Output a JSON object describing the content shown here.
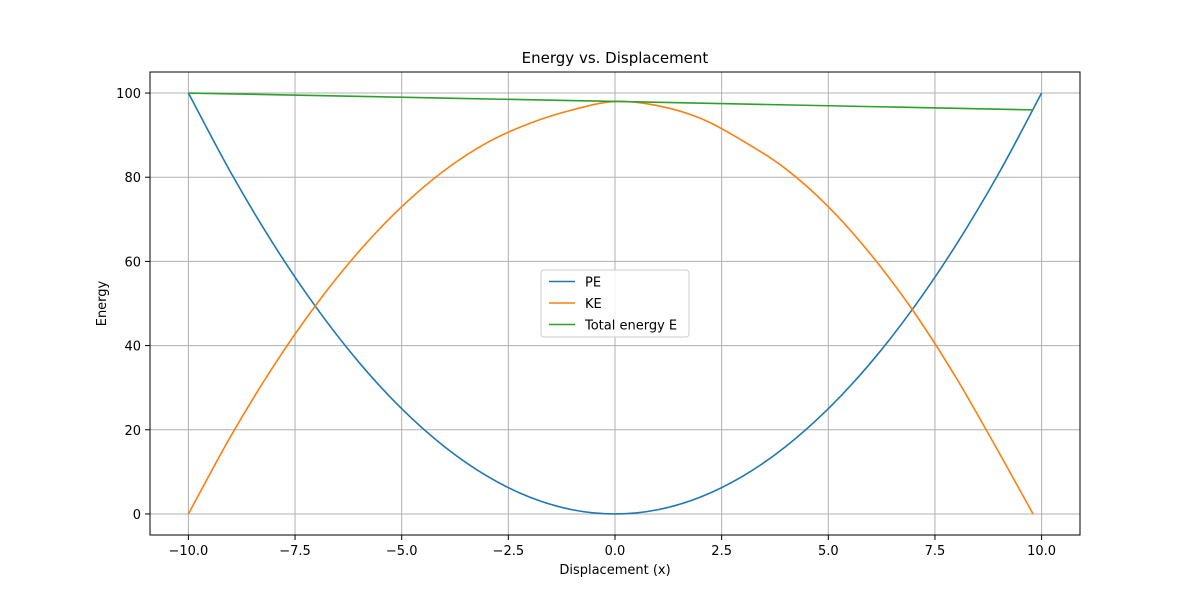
{
  "chart_data": {
    "type": "line",
    "title": "Energy vs. Displacement",
    "xlabel": "Displacement (x)",
    "ylabel": "Energy",
    "xlim": [
      -10.9,
      10.9
    ],
    "ylim": [
      -5,
      105
    ],
    "x_ticks": [
      -10.0,
      -7.5,
      -5.0,
      -2.5,
      0.0,
      2.5,
      5.0,
      7.5,
      10.0
    ],
    "x_tick_labels": [
      "−10.0",
      "−7.5",
      "−5.0",
      "−2.5",
      "0.0",
      "2.5",
      "5.0",
      "7.5",
      "10.0"
    ],
    "y_ticks": [
      0,
      20,
      40,
      60,
      80,
      100
    ],
    "y_tick_labels": [
      "0",
      "20",
      "40",
      "60",
      "80",
      "100"
    ],
    "grid": true,
    "legend_position": "center",
    "series": [
      {
        "name": "PE",
        "color": "#1f77b4",
        "x": [
          -10.0,
          -9.0,
          -8.0,
          -7.0,
          -6.0,
          -5.0,
          -4.0,
          -3.0,
          -2.0,
          -1.0,
          0.0,
          1.0,
          2.0,
          3.0,
          4.0,
          5.0,
          6.0,
          7.0,
          8.0,
          9.0,
          10.0
        ],
        "y": [
          100,
          81,
          64,
          49,
          36,
          25,
          16,
          9,
          4,
          1,
          0,
          1,
          4,
          9,
          16,
          25,
          36,
          49,
          64,
          81,
          100
        ]
      },
      {
        "name": "KE",
        "color": "#ff7f0e",
        "x": [
          -10.0,
          -9.0,
          -8.0,
          -7.0,
          -6.0,
          -5.0,
          -4.0,
          -3.0,
          -2.0,
          -1.0,
          0.0,
          1.0,
          2.0,
          3.0,
          4.0,
          5.0,
          6.0,
          7.0,
          8.0,
          9.0,
          9.8
        ],
        "y": [
          0,
          18.6,
          35.2,
          49.8,
          62.4,
          73.0,
          81.6,
          88.2,
          92.8,
          96.0,
          98.0,
          97.0,
          94.0,
          88.6,
          82.0,
          73.0,
          61.6,
          48.1,
          32.3,
          14.6,
          0
        ]
      },
      {
        "name": "Total energy E",
        "color": "#2ca02c",
        "x": [
          -10.0,
          0.0,
          9.8
        ],
        "y": [
          100,
          98,
          96
        ]
      }
    ]
  }
}
